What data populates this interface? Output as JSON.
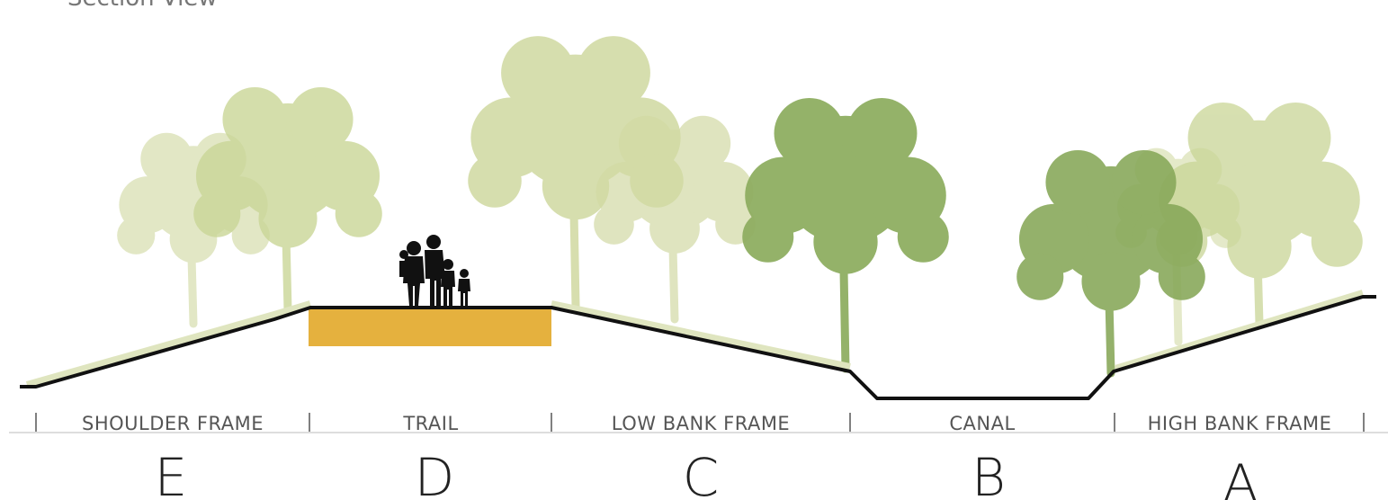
{
  "title": "Section View",
  "zones": [
    {
      "label": "SHOULDER FRAME",
      "letter": "E"
    },
    {
      "label": "TRAIL",
      "letter": "D"
    },
    {
      "label": "LOW BANK FRAME",
      "letter": "C"
    },
    {
      "label": "CANAL",
      "letter": "B"
    },
    {
      "label": "HIGH BANK FRAME",
      "letter": "A"
    }
  ]
}
